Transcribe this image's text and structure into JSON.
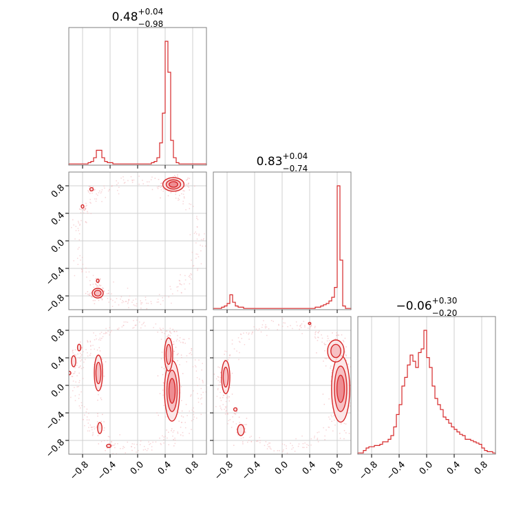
{
  "chart_data": {
    "type": "corner",
    "tick_values": [
      -0.8,
      -0.4,
      0.0,
      0.4,
      0.8
    ],
    "tick_labels": [
      "−0.8",
      "−0.4",
      "0.0",
      "0.4",
      "0.8"
    ],
    "axis_range": [
      -1.0,
      1.0
    ],
    "grid": true,
    "color": "#d62728",
    "parameters": [
      {
        "title_value": "0.48",
        "title_plus": "+0.04",
        "title_minus": "−0.98",
        "histogram": [
          0.01,
          0.01,
          0.01,
          0.01,
          0.01,
          0.01,
          0.01,
          0.02,
          0.03,
          0.06,
          0.12,
          0.12,
          0.06,
          0.03,
          0.02,
          0.02,
          0.01,
          0.01,
          0.01,
          0.01,
          0.01,
          0.01,
          0.01,
          0.01,
          0.01,
          0.01,
          0.01,
          0.01,
          0.01,
          0.01,
          0.02,
          0.03,
          0.06,
          0.18,
          0.42,
          1.0,
          0.75,
          0.2,
          0.06,
          0.02,
          0.01,
          0.01,
          0.01,
          0.01,
          0.01,
          0.01,
          0.01,
          0.01,
          0.01,
          0.01
        ]
      },
      {
        "title_value": "0.83",
        "title_plus": "+0.04",
        "title_minus": "−0.74",
        "histogram": [
          0.01,
          0.01,
          0.01,
          0.02,
          0.03,
          0.05,
          0.12,
          0.06,
          0.03,
          0.02,
          0.02,
          0.01,
          0.01,
          0.01,
          0.01,
          0.01,
          0.01,
          0.01,
          0.01,
          0.01,
          0.01,
          0.01,
          0.01,
          0.01,
          0.01,
          0.01,
          0.01,
          0.01,
          0.01,
          0.01,
          0.01,
          0.01,
          0.01,
          0.01,
          0.01,
          0.01,
          0.01,
          0.02,
          0.02,
          0.03,
          0.04,
          0.05,
          0.07,
          0.1,
          0.18,
          1.0,
          0.4,
          0.03,
          0.01,
          0.01
        ]
      },
      {
        "title_value": "−0.06",
        "title_plus": "+0.30",
        "title_minus": "−0.20",
        "histogram": [
          0.01,
          0.01,
          0.03,
          0.05,
          0.06,
          0.06,
          0.07,
          0.07,
          0.08,
          0.1,
          0.1,
          0.12,
          0.15,
          0.22,
          0.32,
          0.4,
          0.55,
          0.62,
          0.72,
          0.8,
          0.75,
          0.7,
          0.82,
          0.85,
          1.0,
          0.78,
          0.7,
          0.55,
          0.45,
          0.4,
          0.36,
          0.3,
          0.28,
          0.25,
          0.22,
          0.2,
          0.18,
          0.16,
          0.15,
          0.12,
          0.12,
          0.11,
          0.1,
          0.09,
          0.08,
          0.05,
          0.03,
          0.02,
          0.02,
          0.01
        ]
      }
    ],
    "pairs": [
      {
        "row": 1,
        "col": 0,
        "modes": [
          {
            "x": 0.52,
            "y": 0.82,
            "sx": 0.07,
            "sy": 0.045,
            "w": 1.0
          },
          {
            "x": -0.58,
            "y": -0.76,
            "sx": 0.04,
            "sy": 0.035,
            "w": 0.55
          },
          {
            "x": -0.67,
            "y": 0.75,
            "sx": 0.015,
            "sy": 0.015,
            "w": 0.25
          },
          {
            "x": -0.8,
            "y": 0.5,
            "sx": 0.012,
            "sy": 0.015,
            "w": 0.2
          },
          {
            "x": -0.58,
            "y": -0.58,
            "sx": 0.012,
            "sy": 0.015,
            "w": 0.2
          }
        ]
      },
      {
        "row": 2,
        "col": 0,
        "modes": [
          {
            "x": 0.5,
            "y": -0.08,
            "sx": 0.05,
            "sy": 0.2,
            "w": 1.0
          },
          {
            "x": 0.45,
            "y": 0.45,
            "sx": 0.03,
            "sy": 0.12,
            "w": 0.5
          },
          {
            "x": -0.57,
            "y": 0.18,
            "sx": 0.03,
            "sy": 0.13,
            "w": 0.55
          },
          {
            "x": -0.93,
            "y": 0.35,
            "sx": 0.02,
            "sy": 0.05,
            "w": 0.25
          },
          {
            "x": -0.85,
            "y": 0.55,
            "sx": 0.015,
            "sy": 0.03,
            "w": 0.2
          },
          {
            "x": -0.55,
            "y": -0.62,
            "sx": 0.02,
            "sy": 0.05,
            "w": 0.2
          },
          {
            "x": -0.42,
            "y": -0.88,
            "sx": 0.02,
            "sy": 0.015,
            "w": 0.2
          },
          {
            "x": -0.99,
            "y": 0.18,
            "sx": 0.012,
            "sy": 0.015,
            "w": 0.15
          }
        ]
      },
      {
        "row": 2,
        "col": 1,
        "modes": [
          {
            "x": 0.85,
            "y": -0.05,
            "sx": 0.06,
            "sy": 0.22,
            "w": 1.0
          },
          {
            "x": 0.78,
            "y": 0.5,
            "sx": 0.06,
            "sy": 0.08,
            "w": 0.55
          },
          {
            "x": -0.82,
            "y": 0.12,
            "sx": 0.03,
            "sy": 0.12,
            "w": 0.55
          },
          {
            "x": -0.6,
            "y": -0.65,
            "sx": 0.03,
            "sy": 0.05,
            "w": 0.25
          },
          {
            "x": 0.4,
            "y": 0.9,
            "sx": 0.01,
            "sy": 0.01,
            "w": 0.15
          },
          {
            "x": -0.68,
            "y": -0.35,
            "sx": 0.015,
            "sy": 0.015,
            "w": 0.15
          }
        ]
      }
    ]
  }
}
